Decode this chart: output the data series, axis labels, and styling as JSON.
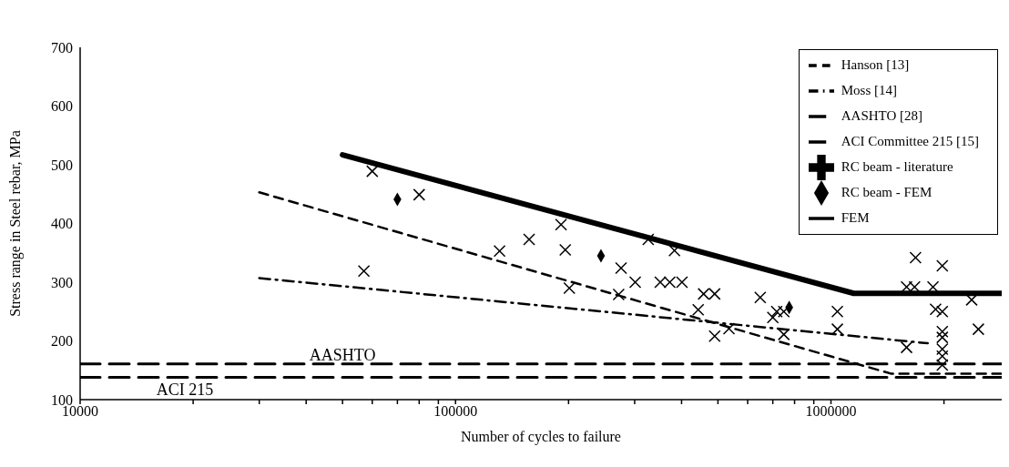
{
  "chart_data": {
    "type": "scatter",
    "xlabel": "Number of cycles to failure",
    "ylabel": "Stress range in Steel rebar, MPa",
    "log": "x",
    "xlim": [
      10000,
      2850000
    ],
    "ylim": [
      100,
      700
    ],
    "xticks": [
      10000,
      {
        "value": 20000,
        "label": null
      },
      {
        "value": 30000,
        "label": null
      },
      {
        "value": 40000,
        "label": null
      },
      {
        "value": 50000,
        "label": null
      },
      {
        "value": 60000,
        "label": null
      },
      {
        "value": 70000,
        "label": null
      },
      {
        "value": 80000,
        "label": null
      },
      {
        "value": 90000,
        "label": null
      },
      100000,
      {
        "value": 200000,
        "label": null
      },
      {
        "value": 300000,
        "label": null
      },
      {
        "value": 400000,
        "label": null
      },
      {
        "value": 500000,
        "label": null
      },
      {
        "value": 600000,
        "label": null
      },
      {
        "value": 700000,
        "label": null
      },
      {
        "value": 800000,
        "label": null
      },
      {
        "value": 900000,
        "label": null
      },
      1000000,
      {
        "value": 2000000,
        "label": null
      }
    ],
    "yticks": [
      100,
      200,
      300,
      400,
      500,
      600,
      700
    ],
    "grid": false,
    "legend": "top right",
    "series": [
      {
        "name": "Hanson [13]",
        "type": "line",
        "line_style": "dashed",
        "marker": "none",
        "color": "#000000",
        "x": [
          30000,
          1450000,
          2850000
        ],
        "values": [
          453,
          144,
          144
        ]
      },
      {
        "name": "Moss [14]",
        "type": "line",
        "line_style": "dashdot",
        "marker": "none",
        "color": "#000000",
        "x": [
          30000,
          1810000
        ],
        "values": [
          307,
          196
        ]
      },
      {
        "name": "AASHTO [28]",
        "type": "line",
        "line_style": "longdash",
        "marker": "none",
        "color": "#000000",
        "x": [
          10000,
          2850000
        ],
        "values": [
          161,
          161
        ]
      },
      {
        "name": "ACI Committee 215 [15]",
        "type": "line",
        "line_style": "longdash",
        "marker": "none",
        "color": "#000000",
        "x": [
          10000,
          2850000
        ],
        "values": [
          138,
          138
        ]
      },
      {
        "name": "RC beam - literature",
        "type": "scatter",
        "marker": "cross",
        "color": "#000000",
        "x": [
          60000,
          80000,
          57000,
          131000,
          157000,
          191000,
          196000,
          201000,
          272000,
          276000,
          301000,
          326000,
          351000,
          383000,
          372000,
          401000,
          443000,
          458000,
          490000,
          490000,
          535000,
          648000,
          700000,
          717000,
          749000,
          749000,
          1040000,
          1040000,
          1590000,
          1590000,
          1680000,
          1670000,
          1870000,
          1980000,
          1900000,
          1980000,
          1980000,
          1980000,
          1980000,
          1980000,
          1980000,
          2370000,
          2470000
        ],
        "values": [
          489,
          449,
          319,
          353,
          373,
          398,
          355,
          290,
          279,
          324,
          300,
          373,
          300,
          354,
          300,
          300,
          253,
          280,
          280,
          208,
          221,
          274,
          240,
          250,
          250,
          211,
          250,
          220,
          189,
          292,
          342,
          292,
          292,
          328,
          254,
          250,
          216,
          206,
          186,
          174,
          159,
          270,
          220
        ]
      },
      {
        "name": "RC beam - FEM",
        "type": "scatter",
        "marker": "diamond",
        "color": "#000000",
        "x": [
          70000,
          244000,
          774000
        ],
        "values": [
          441,
          345,
          257
        ]
      },
      {
        "name": "FEM",
        "type": "line",
        "line_style": "solid",
        "marker": "none",
        "color": "#000000",
        "x": [
          50000,
          1150000,
          2850000
        ],
        "values": [
          517,
          281,
          281
        ]
      }
    ],
    "annotations": [
      {
        "text": "AASHTO",
        "x": 50000,
        "y": 161
      },
      {
        "text": "ACI 215",
        "x": 19000,
        "y": 138
      }
    ]
  }
}
